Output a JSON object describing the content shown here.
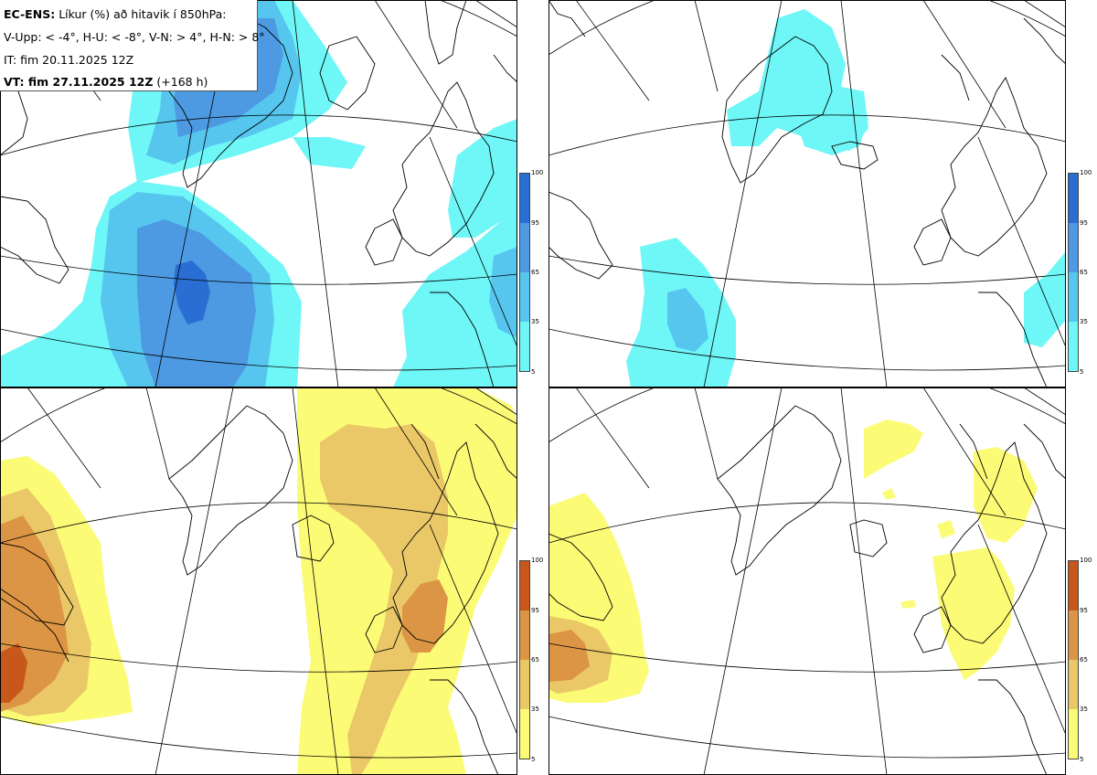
{
  "header": {
    "model": "EC-ENS:",
    "desc": "Líkur (%) að hitavik í 850hPa:",
    "thresholds": "V-Upp: < -4°, H-U: < -8°, V-N: > 4°, H-N: > 8°",
    "init_time": "IT: fim 20.11.2025 12Z",
    "valid_label": "VT: fim 27.11.2025 12Z",
    "lead": "(+168 h)"
  },
  "colorbar_ticks": [
    "100",
    "95",
    "65",
    "35",
    "5"
  ],
  "colors": {
    "cold": [
      "#6ff6f7",
      "#56c6ef",
      "#4d9ae2",
      "#2a6ed4"
    ],
    "warm": [
      "#fbfb76",
      "#eac867",
      "#dc9544",
      "#c7571a"
    ],
    "coast": "#000000",
    "grid": "#000000"
  },
  "panels": [
    {
      "id": "V-Upp",
      "field": "cold",
      "threshold": "< -4°"
    },
    {
      "id": "H-U",
      "field": "cold",
      "threshold": "< -8°"
    },
    {
      "id": "V-N",
      "field": "warm",
      "threshold": "> 4°"
    },
    {
      "id": "H-N",
      "field": "warm",
      "threshold": "> 8°"
    }
  ]
}
